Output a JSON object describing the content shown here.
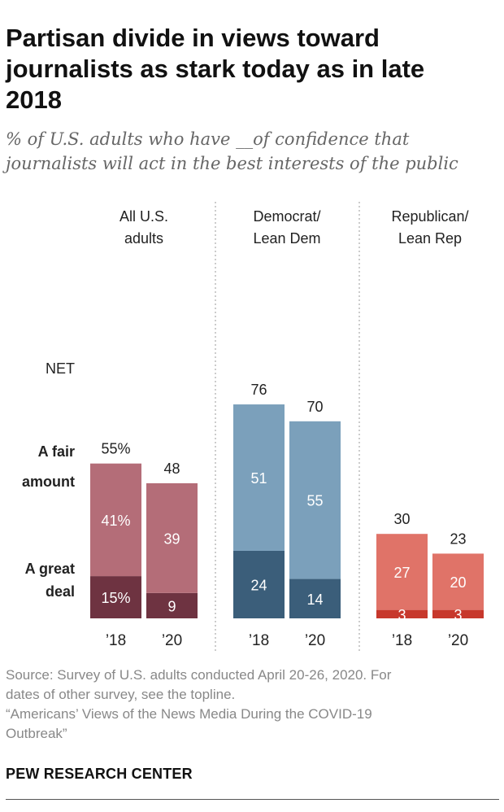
{
  "title": "Partisan divide in views toward journalists as stark today as in late 2018",
  "subtitle": "% of U.S. adults who have __of confidence that journalists will act in the best interests of the public",
  "row_labels": {
    "net": "NET",
    "fair_line1": "A fair",
    "fair_line2": "amount",
    "great_line1": "A great",
    "great_line2": "deal"
  },
  "chart_data": {
    "type": "bar",
    "stacked": true,
    "groups": [
      {
        "label_lines": [
          "All U.S.",
          "adults"
        ],
        "bars": [
          {
            "x_label": "’18",
            "great": 15,
            "fair": 41,
            "net": 55,
            "great_label": "15%",
            "fair_label": "41%",
            "net_label": "55%"
          },
          {
            "x_label": "’20",
            "great": 9,
            "fair": 39,
            "net": 48,
            "great_label": "9",
            "fair_label": "39",
            "net_label": "48"
          }
        ],
        "colors": {
          "great": "#6e3341",
          "fair": "#b46d78"
        }
      },
      {
        "label_lines": [
          "Democrat/",
          "Lean Dem"
        ],
        "bars": [
          {
            "x_label": "’18",
            "great": 24,
            "fair": 51,
            "net": 76,
            "great_label": "24",
            "fair_label": "51",
            "net_label": "76"
          },
          {
            "x_label": "’20",
            "great": 14,
            "fair": 55,
            "net": 70,
            "great_label": "14",
            "fair_label": "55",
            "net_label": "70"
          }
        ],
        "colors": {
          "great": "#3b5e7a",
          "fair": "#7ba0bb"
        }
      },
      {
        "label_lines": [
          "Republican/",
          "Lean Rep"
        ],
        "bars": [
          {
            "x_label": "’18",
            "great": 3,
            "fair": 27,
            "net": 30,
            "great_label": "3",
            "fair_label": "27",
            "net_label": "30"
          },
          {
            "x_label": "’20",
            "great": 3,
            "fair": 20,
            "net": 23,
            "great_label": "3",
            "fair_label": "20",
            "net_label": "23"
          }
        ],
        "colors": {
          "great": "#c7382c",
          "fair": "#e07368"
        }
      }
    ],
    "ylim": [
      0,
      100
    ]
  },
  "source_lines": [
    "Source: Survey of U.S. adults conducted April 20-26, 2020. For",
    "dates of other survey, see the topline.",
    "“Americans’ Views of the News Media During the COVID-19",
    "Outbreak”"
  ],
  "brand": "PEW RESEARCH CENTER"
}
